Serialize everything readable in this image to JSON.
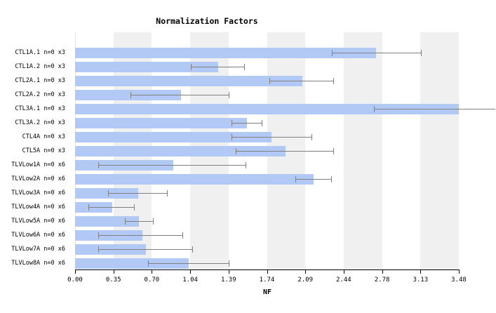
{
  "title": "Normalization Factors",
  "chart_data": {
    "type": "bar",
    "orientation": "horizontal",
    "title": "Normalization Factors",
    "xlabel": "NF",
    "xlim": [
      0,
      3.48
    ],
    "xtick_labels": [
      "0.00",
      "0.35",
      "0.70",
      "1.04",
      "1.39",
      "1.74",
      "2.09",
      "2.44",
      "2.78",
      "3.13",
      "3.48"
    ],
    "grid": "alternating vertical bands, white then gray per tick interval",
    "legend": "none",
    "bar_color": "#b2c8f5",
    "error_bar_color": "#7f7f7f",
    "band_gray_color": "#f0f0f0",
    "categories": [
      "CTL1A.1 n=0 x3",
      "CTL1A.2 n=0 x3",
      "CTL2A.1 n=0 x3",
      "CTL2A.2 n=0 x3",
      "CTL3A.1 n=0 x3",
      "CTL3A.2 n=0 x3",
      "CTL4A n=0 x3",
      "CTL5A n=0 x3",
      "TLVLow1A n=0 x6",
      "TLVLow2A n=0 x6",
      "TLVLow3A n=0 x6",
      "TLVLow4A n=0 x6",
      "TLVLow5A n=0 x6",
      "TLVLow6A n=0 x6",
      "TLVLow7A n=0 x6",
      "TLVLow8A n=0 x6"
    ],
    "values": [
      2.73,
      1.3,
      2.06,
      0.96,
      3.48,
      1.56,
      1.78,
      1.91,
      0.89,
      2.16,
      0.57,
      0.34,
      0.58,
      0.61,
      0.64,
      1.03
    ],
    "error_low": [
      2.33,
      1.05,
      1.76,
      0.5,
      2.71,
      1.42,
      1.42,
      1.46,
      0.21,
      2.0,
      0.3,
      0.12,
      0.45,
      0.21,
      0.21,
      0.66
    ],
    "error_high": [
      3.14,
      1.54,
      2.35,
      1.4,
      3.81,
      1.7,
      2.15,
      2.35,
      1.55,
      2.33,
      0.84,
      0.54,
      0.71,
      0.98,
      1.07,
      1.4
    ],
    "error_high_clipped": [
      false,
      false,
      false,
      false,
      true,
      false,
      false,
      false,
      false,
      false,
      false,
      false,
      false,
      false,
      false,
      false
    ]
  }
}
